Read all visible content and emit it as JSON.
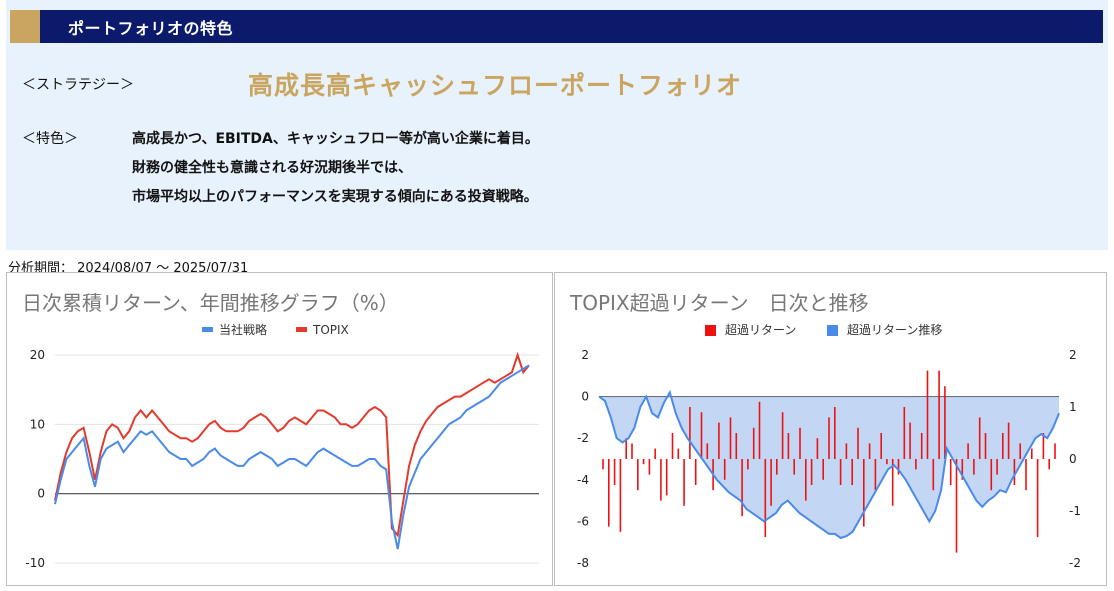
{
  "header": {
    "title": "ポートフォリオの特色"
  },
  "strategy": {
    "label": "＜ストラテジー＞",
    "name": "高成長高キャッシュフローポートフォリオ"
  },
  "features": {
    "label": "＜特色＞",
    "lines": [
      "高成長かつ、EBITDA、キャッシュフロー等が高い企業に着目。",
      "財務の健全性も意識される好況期後半では、",
      "市場平均以上のパフォーマンスを実現する傾向にある投資戦略。"
    ]
  },
  "period": {
    "label": "分析期間： 2024/08/07 〜 2025/07/31"
  },
  "colors": {
    "strategy_line": "#4a8ae8",
    "topix_line": "#e23b2e",
    "excess_bar": "#ee1111",
    "excess_area_fill": "#b8d0f2",
    "excess_area_line": "#4a8ae8",
    "header_bg": "#0b1a6b",
    "accent": "#c9a560"
  },
  "chart_data": [
    {
      "type": "line",
      "title": "日次累積リターン、年間推移グラフ（%）",
      "legend_position": "top",
      "ylim": [
        -10,
        20
      ],
      "yticks": [
        -10,
        0,
        10,
        20
      ],
      "series": [
        {
          "name": "当社戦略",
          "color": "#4a8ae8",
          "values": [
            -1.5,
            2,
            5,
            6,
            7,
            8,
            4,
            1,
            5,
            6.5,
            7,
            7.5,
            6,
            7,
            8,
            9,
            8.5,
            9,
            8,
            7,
            6,
            5.5,
            5,
            5,
            4,
            4.5,
            5,
            6,
            6.5,
            5.5,
            5,
            4.5,
            4,
            4,
            5,
            5.5,
            6,
            5.5,
            5,
            4,
            4.5,
            5,
            5,
            4.5,
            4,
            5,
            6,
            6.5,
            6,
            5.5,
            5,
            4.5,
            4,
            4,
            4.5,
            5,
            5,
            4,
            3.5,
            -4,
            -8,
            -3,
            1,
            3,
            5,
            6,
            7,
            8,
            9,
            10,
            10.5,
            11,
            12,
            12.5,
            13,
            13.5,
            14,
            15,
            16,
            16.5,
            17,
            17.5,
            18,
            18.5
          ]
        },
        {
          "name": "TOPIX",
          "color": "#e23b2e",
          "values": [
            -1,
            3,
            6,
            8,
            9,
            9.5,
            6,
            2,
            6,
            9,
            10,
            9.5,
            8,
            9,
            11,
            12,
            11,
            12,
            11,
            10,
            9,
            8.5,
            8,
            8,
            7.5,
            8,
            9,
            10,
            10.5,
            9.5,
            9,
            9,
            9,
            9.5,
            10.5,
            11,
            11.5,
            11,
            10,
            9,
            9.5,
            10.5,
            11,
            10.5,
            10,
            11,
            12,
            12,
            11.5,
            11,
            10,
            10,
            9.5,
            10,
            11,
            12,
            12.5,
            12,
            11,
            -5,
            -6,
            -1,
            4,
            7,
            9,
            10.5,
            11.5,
            12.5,
            13,
            13.5,
            14,
            14,
            14.5,
            15,
            15.5,
            16,
            16.5,
            16,
            16.5,
            17,
            17.5,
            20,
            17.5,
            18.5
          ]
        }
      ]
    },
    {
      "type": "bar",
      "title": "TOPIX超過リターン　日次と推移",
      "legend_position": "top",
      "ylim_left": [
        -8,
        2
      ],
      "yticks_left": [
        -8,
        -6,
        -4,
        -2,
        0,
        2
      ],
      "ylim_right": [
        -2,
        2
      ],
      "yticks_right": [
        -2,
        -1,
        0,
        1,
        2
      ],
      "series": [
        {
          "name": "超過リターン",
          "axis": "right",
          "color": "#ee1111",
          "values": [
            -0.2,
            -1.3,
            -0.5,
            -1.4,
            0.4,
            0.3,
            -0.6,
            -0.1,
            -0.3,
            0.2,
            -0.8,
            -0.7,
            0.5,
            0.2,
            -0.9,
            1.0,
            -0.5,
            0.9,
            0.3,
            -0.6,
            0.7,
            -0.4,
            0.8,
            0.5,
            -1.1,
            -0.2,
            0.6,
            1.1,
            -1.5,
            -0.9,
            -0.3,
            0.9,
            0.5,
            -0.3,
            0.6,
            -0.8,
            -0.5,
            0.4,
            -0.4,
            0.8,
            1.0,
            -0.5,
            0.3,
            -0.5,
            0.6,
            -1.3,
            0.3,
            -0.6,
            0.5,
            -0.1,
            -0.9,
            -0.3,
            1.0,
            0.7,
            -0.2,
            0.5,
            1.7,
            -0.6,
            1.7,
            1.4,
            -0.5,
            -1.8,
            -0.4,
            0.3,
            -0.3,
            0.8,
            0.5,
            -0.6,
            -0.3,
            0.5,
            0.7,
            -0.5,
            0.3,
            -0.6,
            0.2,
            -1.5,
            0.5,
            -0.2,
            0.3
          ]
        },
        {
          "name": "超過リターン推移",
          "axis": "left",
          "color": "#4a8ae8",
          "values": [
            0,
            -0.2,
            -1.0,
            -2.0,
            -2.2,
            -2.0,
            -1.5,
            -0.5,
            0,
            -0.8,
            -1.0,
            -0.3,
            0.2,
            -0.8,
            -1.5,
            -2.0,
            -2.4,
            -2.8,
            -3.2,
            -3.6,
            -4.0,
            -4.3,
            -4.6,
            -4.8,
            -5.0,
            -5.4,
            -5.6,
            -5.8,
            -6.0,
            -5.8,
            -5.6,
            -5.2,
            -5.0,
            -5.3,
            -5.6,
            -5.8,
            -6.0,
            -6.2,
            -6.4,
            -6.6,
            -6.6,
            -6.8,
            -6.7,
            -6.5,
            -6.0,
            -5.5,
            -5.0,
            -4.5,
            -4.0,
            -3.5,
            -3.3,
            -3.6,
            -4.0,
            -4.5,
            -5.0,
            -5.5,
            -6.0,
            -5.5,
            -4.5,
            -2.5,
            -3.0,
            -3.5,
            -4.0,
            -4.5,
            -5.0,
            -5.3,
            -5.0,
            -4.8,
            -4.5,
            -4.6,
            -4.0,
            -3.5,
            -3.0,
            -2.5,
            -2.0,
            -1.8,
            -2.0,
            -1.5,
            -0.8
          ]
        }
      ]
    }
  ]
}
